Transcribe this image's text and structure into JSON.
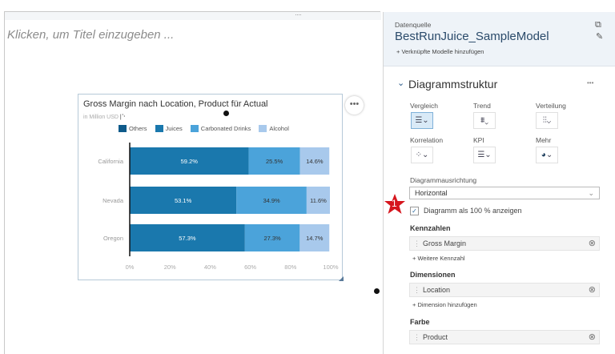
{
  "canvas": {
    "title_placeholder": "Klicken, um Titel einzugeben ...",
    "grip": "····",
    "more": "•••"
  },
  "chart_data": {
    "type": "bar",
    "orientation": "horizontal",
    "stacked_percent": true,
    "title": "Gross Margin nach Location, Product für Actual",
    "subtitle": "in Million USD",
    "categories": [
      "California",
      "Nevada",
      "Oregon"
    ],
    "series": [
      {
        "name": "Others",
        "color": "#0e5a8a",
        "values": [
          0,
          0,
          0
        ]
      },
      {
        "name": "Juices",
        "color": "#1a78ad",
        "values": [
          59.2,
          53.1,
          57.3
        ]
      },
      {
        "name": "Carbonated Drinks",
        "color": "#4ba3da",
        "values": [
          25.5,
          34.9,
          27.3
        ]
      },
      {
        "name": "Alcohol",
        "color": "#a8c9ec",
        "values": [
          14.6,
          11.6,
          14.7
        ]
      }
    ],
    "data_labels": [
      [
        "59.2%",
        "25.5%",
        "14.6%"
      ],
      [
        "53.1%",
        "34.9%",
        "11.6%"
      ],
      [
        "57.3%",
        "27.3%",
        "14.7%"
      ]
    ],
    "xlim": [
      0,
      100
    ],
    "xticks": [
      "0%",
      "20%",
      "40%",
      "60%",
      "80%",
      "100%"
    ],
    "legend": "top",
    "grid": false
  },
  "panel": {
    "source_label": "Datenquelle",
    "source_name": "BestRunJuice_SampleModel",
    "add_linked": "+ Verknüpfte Modelle hinzufügen",
    "section": "Diagrammstruktur",
    "section_more": "•••",
    "types": [
      {
        "label": "Vergleich",
        "icon": "bar-chart-icon",
        "glyph": "☰",
        "selected": true
      },
      {
        "label": "Trend",
        "icon": "area-chart-icon",
        "glyph": "⩩"
      },
      {
        "label": "Verteilung",
        "icon": "boxplot-icon",
        "glyph": "⫶⫶"
      },
      {
        "label": "Korrelation",
        "icon": "scatter-icon",
        "glyph": "⁘"
      },
      {
        "label": "KPI",
        "icon": "bullet-chart-icon",
        "glyph": "☰"
      },
      {
        "label": "Mehr",
        "icon": "donut-icon",
        "glyph": "◕"
      }
    ],
    "orientation_label": "Diagrammausrichtung",
    "orientation_value": "Horizontal",
    "percent_checkbox": "Diagramm als 100 % anzeigen",
    "percent_checked": true,
    "measures_label": "Kennzahlen",
    "measure": "Gross Margin",
    "add_measure": "+ Weitere Kennzahl",
    "dimensions_label": "Dimensionen",
    "dimension": "Location",
    "add_dimension": "+ Dimension hinzufügen",
    "color_label": "Farbe",
    "color_dim": "Product",
    "step_badge": "1"
  }
}
